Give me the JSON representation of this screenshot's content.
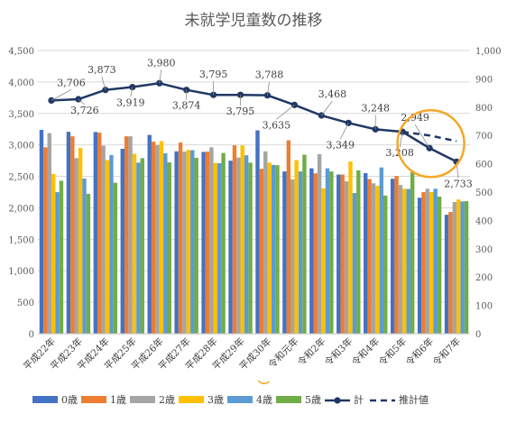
{
  "chart_data": {
    "type": "bar",
    "title": "未就学児童数の推移",
    "categories": [
      "平成22年",
      "平成23年",
      "平成24年",
      "平成25年",
      "平成26年",
      "平成27年",
      "平成28年",
      "平成29年",
      "平成30年",
      "令和元年",
      "令和2年",
      "令和3年",
      "令和4年",
      "令和5年",
      "令和6年",
      "令和7年"
    ],
    "left_axis": {
      "min": 0,
      "max": 4500,
      "step": 500
    },
    "right_axis": {
      "min": 0,
      "max": 1000,
      "step": 100
    },
    "grid": true,
    "legend_position": "bottom",
    "series": [
      {
        "name": "0歳",
        "axis": "right",
        "color": "#4472C4",
        "values": [
          720,
          713,
          712,
          653,
          702,
          644,
          642,
          611,
          718,
          573,
          584,
          562,
          567,
          547,
          480,
          420
        ]
      },
      {
        "name": "1歳",
        "axis": "right",
        "color": "#ED7D31",
        "values": [
          658,
          697,
          710,
          697,
          678,
          675,
          643,
          665,
          582,
          683,
          566,
          562,
          546,
          557,
          500,
          430
        ]
      },
      {
        "name": "2歳",
        "axis": "right",
        "color": "#A5A5A5",
        "values": [
          708,
          620,
          664,
          697,
          666,
          643,
          658,
          622,
          644,
          545,
          634,
          538,
          531,
          525,
          512,
          465
        ]
      },
      {
        "name": "3歳",
        "axis": "right",
        "color": "#FFC000",
        "values": [
          564,
          656,
          613,
          635,
          680,
          649,
          603,
          665,
          604,
          613,
          513,
          608,
          522,
          512,
          500,
          474
        ]
      },
      {
        "name": "4歳",
        "axis": "right",
        "color": "#5B9BD5",
        "values": [
          500,
          548,
          631,
          604,
          637,
          648,
          602,
          630,
          596,
          573,
          584,
          497,
          587,
          511,
          512,
          467
        ]
      },
      {
        "name": "5歳",
        "axis": "right",
        "color": "#70AD47",
        "values": [
          540,
          494,
          533,
          620,
          605,
          621,
          638,
          604,
          595,
          632,
          573,
          577,
          488,
          571,
          484,
          468
        ]
      },
      {
        "name": "計",
        "axis": "left",
        "color": "#203864",
        "values": [
          3706,
          3726,
          3873,
          3919,
          3980,
          3874,
          3795,
          3795,
          3788,
          3635,
          3468,
          3349,
          3248,
          3208,
          2949,
          2733
        ]
      },
      {
        "name": "推計値",
        "axis": "left",
        "color": "#203864",
        "dashed": true,
        "values": [
          null,
          null,
          null,
          null,
          null,
          null,
          null,
          null,
          null,
          null,
          null,
          null,
          null,
          3208,
          3150,
          3060
        ]
      }
    ],
    "data_labels": [
      "3,706",
      "3,726",
      "3,873",
      "3,919",
      "3,980",
      "3,874",
      "3,795",
      "3,795",
      "3,788",
      "3,635",
      "3,468",
      "3,349",
      "3,248",
      "3,208",
      "2,949",
      "2,733"
    ]
  }
}
